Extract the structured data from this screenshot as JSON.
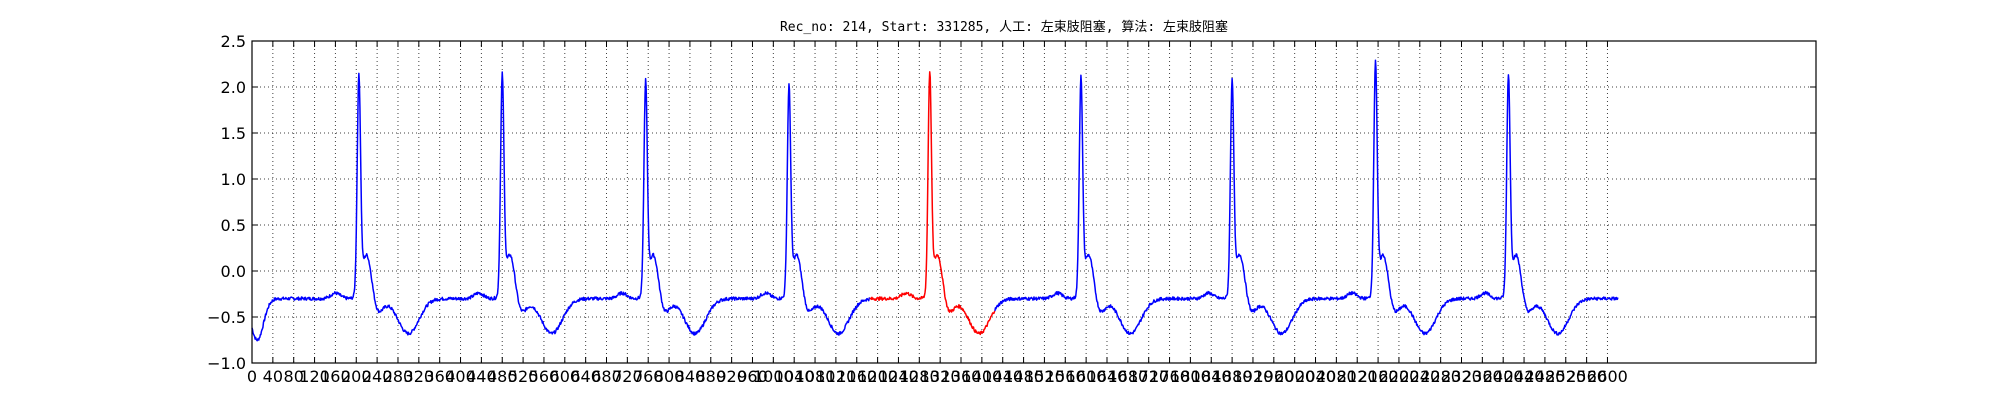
{
  "chart_data": {
    "type": "line",
    "title": "Rec_no: 214, Start: 331285, 人工: 左束肢阻塞, 算法: 左束肢阻塞",
    "xlabel": "",
    "ylabel": "",
    "xlim": [
      0,
      3000
    ],
    "ylim": [
      -1.0,
      2.5
    ],
    "grid": true,
    "x_ticks": [
      0,
      40,
      80,
      120,
      160,
      200,
      240,
      280,
      320,
      360,
      400,
      440,
      480,
      520,
      560,
      600,
      640,
      680,
      720,
      760,
      800,
      840,
      880,
      920,
      960,
      1000,
      1040,
      1080,
      1120,
      1160,
      1200,
      1240,
      1280,
      1320,
      1360,
      1400,
      1440,
      1480,
      1520,
      1560,
      1600,
      1640,
      1680,
      1720,
      1760,
      1800,
      1840,
      1880,
      1920,
      1960,
      2000,
      2040,
      2080,
      2120,
      2160,
      2200,
      2240,
      2280,
      2320,
      2360,
      2400,
      2440,
      2480,
      2520,
      2560,
      2600
    ],
    "x_tick_labels": [
      "0",
      "40",
      "80",
      "120",
      "160",
      "200",
      "240",
      "280",
      "320",
      "360",
      "400",
      "440",
      "480",
      "520",
      "560",
      "600",
      "640",
      "680",
      "720",
      "760",
      "800",
      "840",
      "880",
      "920",
      "960",
      "1000",
      "1040",
      "1080",
      "1120",
      "1160",
      "1200",
      "1240",
      "1280",
      "1320",
      "1360",
      "1400",
      "1440",
      "1480",
      "1520",
      "1560",
      "1600",
      "1640",
      "1680",
      "1720",
      "1760",
      "1800",
      "1840",
      "1880",
      "1920",
      "1960",
      "2000",
      "2040",
      "2080",
      "2120",
      "2160",
      "2200",
      "2240",
      "2280",
      "2320",
      "2360",
      "2400",
      "2440",
      "2480",
      "2520",
      "2560",
      "2600"
    ],
    "y_ticks": [
      -1.0,
      -0.5,
      0.0,
      0.5,
      1.0,
      1.5,
      2.0,
      2.5
    ],
    "y_tick_labels": [
      "−1.0",
      "−0.5",
      "0.0",
      "0.5",
      "1.0",
      "1.5",
      "2.0",
      "2.5"
    ],
    "beats": [
      {
        "r_x": 205,
        "r_peak": 2.05,
        "color": "#0000ff"
      },
      {
        "r_x": 480,
        "r_peak": 2.05,
        "color": "#0000ff"
      },
      {
        "r_x": 755,
        "r_peak": 1.98,
        "color": "#0000ff"
      },
      {
        "r_x": 1030,
        "r_peak": 1.93,
        "color": "#0000ff"
      },
      {
        "r_x": 1300,
        "r_peak": 2.08,
        "color": "#ff0000"
      },
      {
        "r_x": 1590,
        "r_peak": 2.02,
        "color": "#0000ff"
      },
      {
        "r_x": 1880,
        "r_peak": 2.0,
        "color": "#0000ff"
      },
      {
        "r_x": 2155,
        "r_peak": 2.2,
        "color": "#0000ff"
      },
      {
        "r_x": 2410,
        "r_peak": 2.05,
        "color": "#0000ff"
      }
    ],
    "highlight": {
      "x_start": 1185,
      "x_end": 1425,
      "color": "#ff0000"
    },
    "series": [
      {
        "color": "#0000ff",
        "x_range": [
          0,
          2620
        ]
      }
    ]
  }
}
